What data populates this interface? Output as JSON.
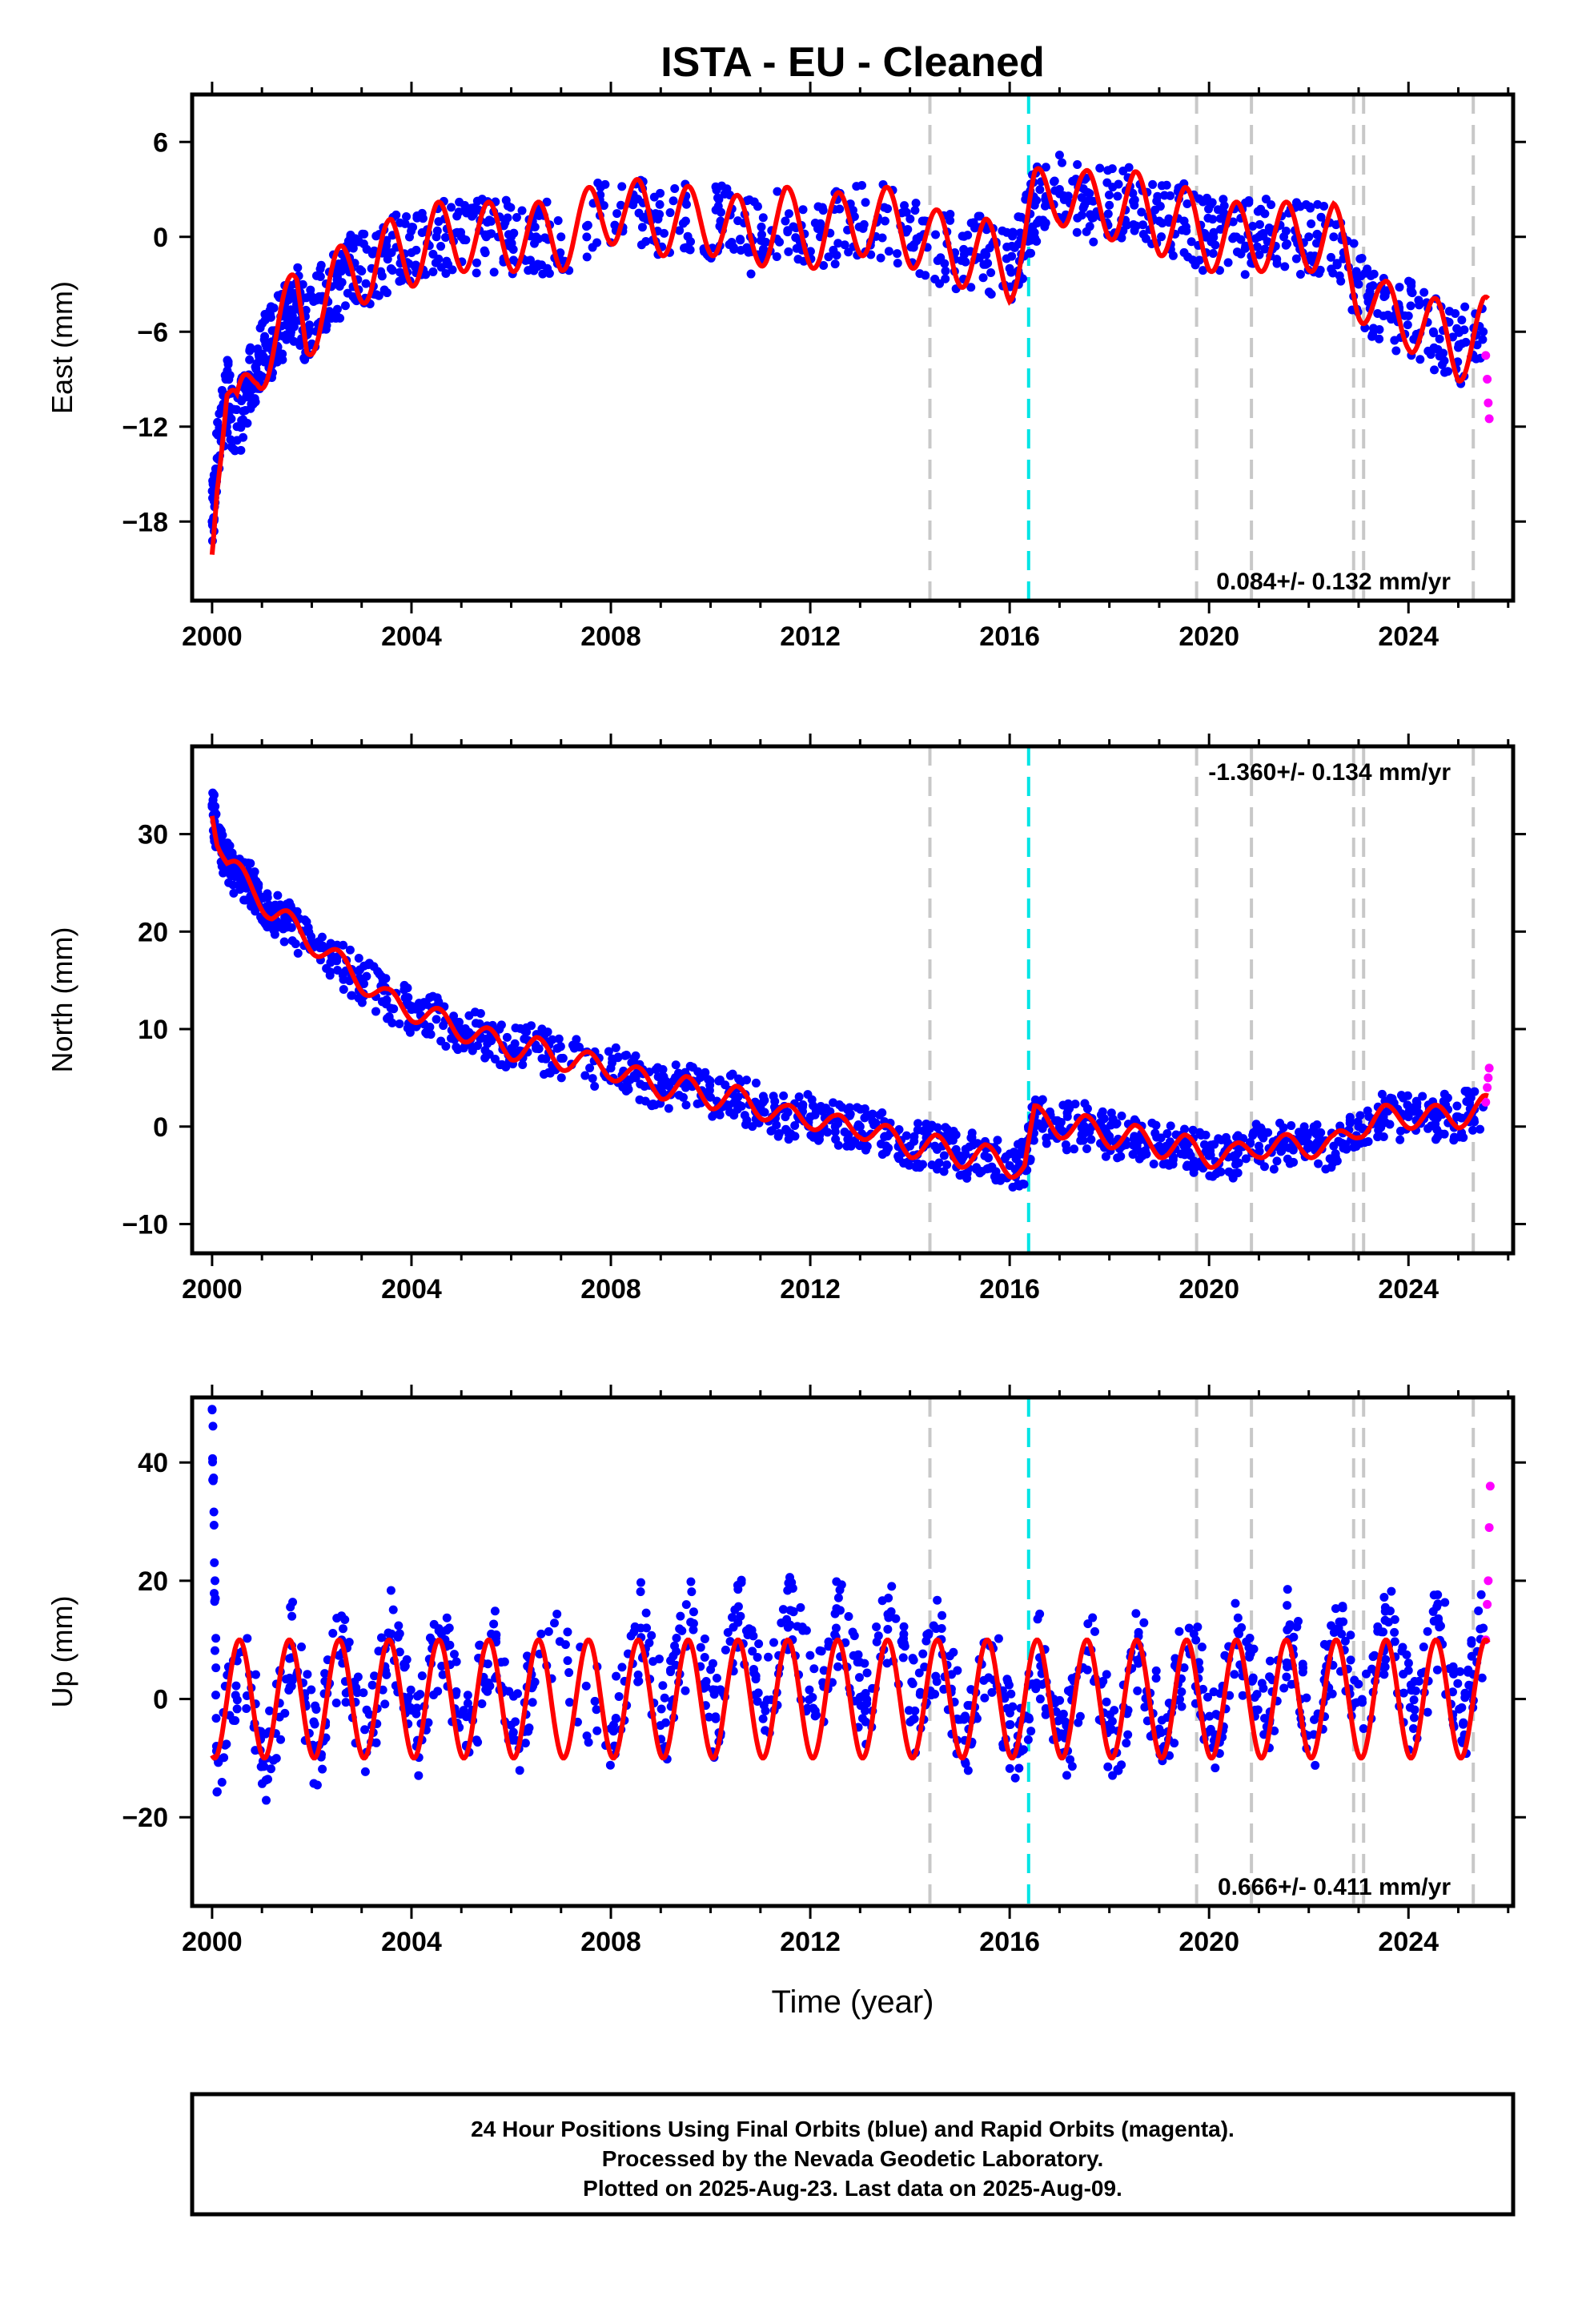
{
  "title": "ISTA  - EU - Cleaned",
  "footer": {
    "line1": "24 Hour Positions Using Final Orbits (blue) and Rapid Orbits (magenta).",
    "line2": "Processed by the Nevada Geodetic Laboratory.",
    "line3": "Plotted on 2025-Aug-23. Last data on 2025-Aug-09."
  },
  "colors": {
    "final_orbits": "#0000ff",
    "rapid_orbits": "#ff00ff",
    "model_fit": "#ff0000",
    "equipment_change": "#c8c8c8",
    "earthquake": "#00e5e5"
  },
  "chart_data": [
    {
      "type": "scatter",
      "ylabel": "East (mm)",
      "xlabel": "",
      "xlim": [
        1999.6,
        2026.1
      ],
      "ylim": [
        -23,
        9
      ],
      "xticks": [
        2000,
        2004,
        2008,
        2012,
        2016,
        2020,
        2024
      ],
      "yticks": [
        6,
        0,
        -6,
        -12,
        -18
      ],
      "grid": false,
      "rate_text": "0.084+/- 0.132 mm/yr",
      "rate_position": "bottom-right",
      "offset_lines_gray": [
        2014.4,
        2019.75,
        2020.85,
        2022.9,
        2023.1,
        2025.3
      ],
      "offset_lines_cyan": [
        2016.38
      ],
      "series": [
        {
          "kind": "points",
          "color": "blue",
          "x": [
            2000.0,
            2000.1,
            2000.3,
            2000.5,
            2000.7,
            2000.9,
            2001.1,
            2001.3,
            2001.5,
            2001.7,
            2001.9,
            2002.2,
            2002.5,
            2002.8,
            2003.2,
            2003.6,
            2004.0,
            2004.5,
            2005.0,
            2005.5,
            2006.0,
            2006.5,
            2007.0,
            2008.2,
            2008.8,
            2009.5,
            2010.2,
            2010.8,
            2011.5,
            2012.2,
            2012.8,
            2013.5,
            2014.2,
            2014.9,
            2015.5,
            2016.0,
            2016.3,
            2016.5,
            2017.0,
            2017.5,
            2018.0,
            2018.5,
            2019.0,
            2019.5,
            2020.0,
            2020.5,
            2021.0,
            2021.5,
            2022.0,
            2022.5,
            2023.0,
            2023.5,
            2024.0,
            2024.5,
            2025.0,
            2025.5
          ],
          "y": [
            -18,
            -14,
            -10,
            -12,
            -10,
            -8,
            -7,
            -6,
            -5,
            -4,
            -6,
            -4,
            -3,
            -2,
            -2,
            -1,
            -1,
            0,
            0,
            0,
            0,
            0,
            0,
            2,
            1,
            1,
            1,
            0,
            1,
            0,
            1,
            1,
            0,
            -1,
            -1,
            -2,
            0,
            2,
            3,
            2,
            2,
            2,
            1,
            1,
            0,
            0,
            0,
            0,
            0,
            0,
            -3,
            -5,
            -5,
            -6,
            -7,
            -6
          ]
        },
        {
          "kind": "points",
          "color": "magenta",
          "x": [
            2025.55,
            2025.58,
            2025.6,
            2025.62
          ],
          "y": [
            -7.5,
            -9,
            -10.5,
            -11.5
          ]
        }
      ]
    },
    {
      "type": "scatter",
      "ylabel": "North (mm)",
      "xlabel": "",
      "xlim": [
        1999.6,
        2026.1
      ],
      "ylim": [
        -13,
        39
      ],
      "xticks": [
        2000,
        2004,
        2008,
        2012,
        2016,
        2020,
        2024
      ],
      "yticks": [
        30,
        20,
        10,
        0,
        -10
      ],
      "grid": false,
      "rate_text": "-1.360+/- 0.134 mm/yr",
      "rate_position": "top-right",
      "offset_lines_gray": [
        2014.4,
        2019.75,
        2020.85,
        2022.9,
        2023.1,
        2025.3
      ],
      "offset_lines_cyan": [
        2016.38
      ],
      "series": [
        {
          "kind": "points",
          "color": "blue",
          "x": [
            2000.0,
            2000.1,
            2000.3,
            2000.5,
            2000.7,
            2000.9,
            2001.2,
            2001.5,
            2002.0,
            2002.5,
            2003.0,
            2003.5,
            2004.0,
            2004.5,
            2005.0,
            2005.5,
            2006.0,
            2006.5,
            2007.0,
            2008.0,
            2008.5,
            2009.0,
            2009.5,
            2010.0,
            2010.5,
            2011.0,
            2011.5,
            2012.0,
            2012.5,
            2013.0,
            2013.5,
            2014.0,
            2014.5,
            2015.0,
            2015.5,
            2016.0,
            2016.3,
            2016.5,
            2017.0,
            2017.5,
            2018.0,
            2018.5,
            2019.0,
            2019.5,
            2020.0,
            2020.5,
            2021.0,
            2021.5,
            2022.0,
            2022.5,
            2023.0,
            2023.5,
            2024.0,
            2024.5,
            2025.0,
            2025.5
          ],
          "y": [
            33,
            30,
            27,
            26,
            25,
            24,
            22,
            21,
            19,
            17,
            15,
            13,
            12,
            11,
            10,
            9,
            8,
            8,
            7,
            6,
            5,
            4,
            4,
            3,
            3,
            2,
            1,
            1,
            0,
            0,
            -1,
            -2,
            -2,
            -3,
            -3,
            -4,
            -4,
            1,
            0,
            0,
            -1,
            -1,
            -2,
            -2,
            -3,
            -3,
            -2,
            -2,
            -2,
            -2,
            0,
            1,
            1,
            1,
            1,
            2
          ]
        },
        {
          "kind": "points",
          "color": "magenta",
          "x": [
            2025.55,
            2025.58,
            2025.6,
            2025.62
          ],
          "y": [
            2.5,
            4,
            5,
            6
          ]
        }
      ]
    },
    {
      "type": "scatter",
      "ylabel": "Up (mm)",
      "xlabel": "Time (year)",
      "xlim": [
        1999.6,
        2026.1
      ],
      "ylim": [
        -35,
        51
      ],
      "xticks": [
        2000,
        2004,
        2008,
        2012,
        2016,
        2020,
        2024
      ],
      "yticks": [
        40,
        20,
        0,
        -20
      ],
      "grid": false,
      "rate_text": "0.666+/- 0.411 mm/yr",
      "rate_position": "bottom-right",
      "offset_lines_gray": [
        2014.4,
        2019.75,
        2020.85,
        2022.9,
        2023.1,
        2025.3
      ],
      "offset_lines_cyan": [
        2016.38
      ],
      "series": [
        {
          "kind": "points",
          "color": "blue",
          "x": [
            2000.0,
            2000.1,
            2000.6,
            2001.1,
            2001.6,
            2002.1,
            2002.6,
            2003.1,
            2003.6,
            2004.1,
            2004.6,
            2005.1,
            2005.6,
            2006.1,
            2006.6,
            2008.0,
            2008.6,
            2009.1,
            2009.6,
            2010.1,
            2010.6,
            2011.1,
            2011.6,
            2012.1,
            2012.6,
            2013.1,
            2013.6,
            2014.1,
            2014.6,
            2015.1,
            2015.6,
            2016.1,
            2016.6,
            2017.1,
            2017.6,
            2018.1,
            2018.6,
            2019.1,
            2019.6,
            2020.1,
            2020.6,
            2021.1,
            2021.6,
            2022.1,
            2022.6,
            2023.1,
            2023.6,
            2024.1,
            2024.6,
            2025.1,
            2025.5
          ],
          "y": [
            49,
            -10,
            8,
            -10,
            9,
            -9,
            10,
            -9,
            11,
            -8,
            11,
            -8,
            11,
            -7,
            11,
            -5,
            12,
            -4,
            13,
            -3,
            14,
            -2,
            15,
            -2,
            15,
            -2,
            14,
            -2,
            10,
            -7,
            9,
            -9,
            7,
            -9,
            8,
            -9,
            9,
            -8,
            12,
            -7,
            11,
            -6,
            12,
            -6,
            12,
            -5,
            13,
            -5,
            13,
            -4,
            12
          ]
        },
        {
          "kind": "points",
          "color": "magenta",
          "x": [
            2025.55,
            2025.58,
            2025.6,
            2025.62,
            2025.64
          ],
          "y": [
            10,
            16,
            20,
            29,
            36
          ]
        }
      ]
    }
  ]
}
